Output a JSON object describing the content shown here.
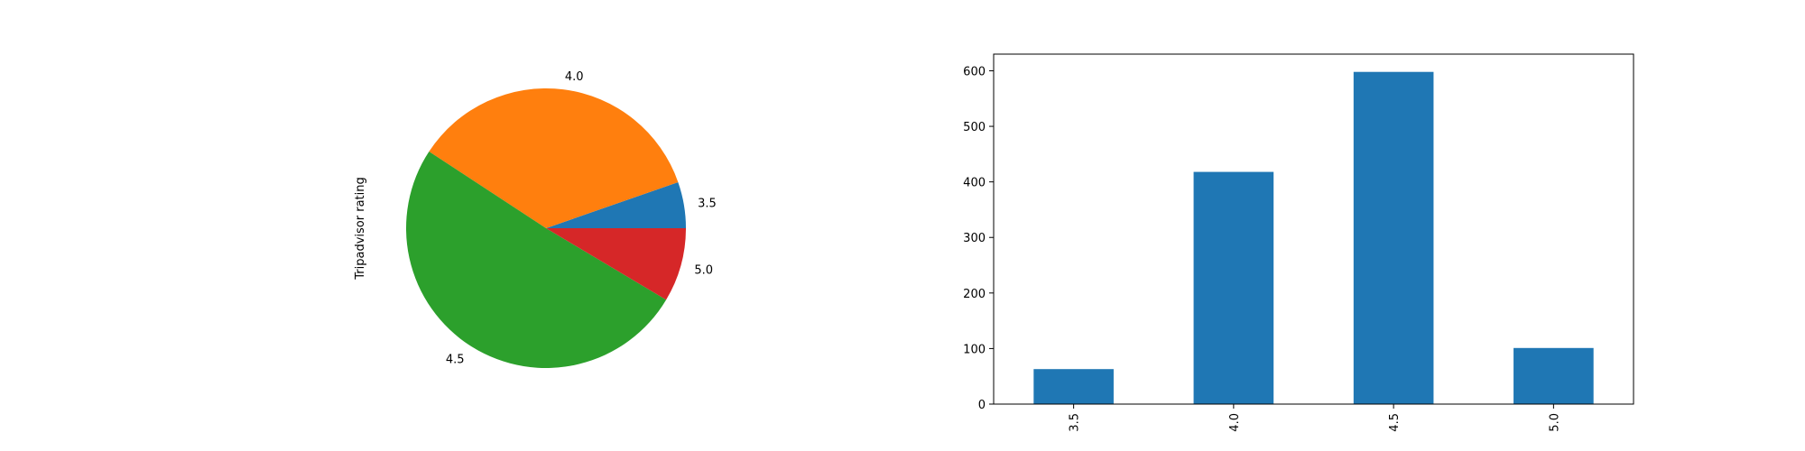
{
  "chart_data": [
    {
      "type": "pie",
      "ylabel": "Tripadvisor rating",
      "categories": [
        "3.5",
        "4.0",
        "4.5",
        "5.0"
      ],
      "values": [
        63,
        418,
        598,
        101
      ],
      "colors": [
        "#1f77b4",
        "#ff7f0e",
        "#2ca02c",
        "#d62728"
      ]
    },
    {
      "type": "bar",
      "categories": [
        "3.5",
        "4.0",
        "4.5",
        "5.0"
      ],
      "values": [
        63,
        418,
        598,
        101
      ],
      "ylim": [
        0,
        630
      ],
      "yticks": [
        0,
        100,
        200,
        300,
        400,
        500,
        600
      ],
      "color": "#1f77b4"
    }
  ]
}
